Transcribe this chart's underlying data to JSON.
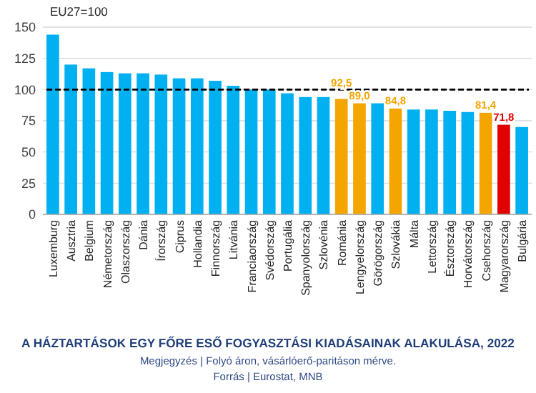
{
  "chart_data": {
    "type": "bar",
    "title": "A HÁZTARTÁSOK EGY FŐRE ESŐ FOGYASZTÁSI KIADÁSAINAK ALAKULÁSA, 2022",
    "ylabel": "EU27=100",
    "annotations": [
      "Megjegyzés | Folyó áron, vásárlóerő-paritáson mérve.",
      "Forrás | Eurostat, MNB"
    ],
    "categories": [
      "Luxemburg",
      "Ausztria",
      "Belgium",
      "Németország",
      "Olaszország",
      "Dánia",
      "Írország",
      "Ciprus",
      "Hollandia",
      "Finnország",
      "Litvánia",
      "Franciaország",
      "Svédország",
      "Portugália",
      "Spanyolország",
      "Szlovénia",
      "Románia",
      "Lengyelország",
      "Görögország",
      "Szlovákia",
      "Málta",
      "Lettország",
      "Észtország",
      "Horvátország",
      "Csehország",
      "Magyarország",
      "Bulgária"
    ],
    "values": [
      144,
      120,
      117,
      114,
      113,
      113,
      112,
      109,
      109,
      107,
      103,
      100,
      100,
      97,
      94,
      94,
      92.5,
      89.0,
      89,
      84.8,
      84,
      84,
      83,
      82,
      81.4,
      71.8,
      70
    ],
    "colors": [
      "#00b0f0",
      "#00b0f0",
      "#00b0f0",
      "#00b0f0",
      "#00b0f0",
      "#00b0f0",
      "#00b0f0",
      "#00b0f0",
      "#00b0f0",
      "#00b0f0",
      "#00b0f0",
      "#00b0f0",
      "#00b0f0",
      "#00b0f0",
      "#00b0f0",
      "#00b0f0",
      "#f5a500",
      "#f5a500",
      "#00b0f0",
      "#f5a500",
      "#00b0f0",
      "#00b0f0",
      "#00b0f0",
      "#00b0f0",
      "#f5a500",
      "#e00000",
      "#00b0f0"
    ],
    "value_labels": [
      null,
      null,
      null,
      null,
      null,
      null,
      null,
      null,
      null,
      null,
      null,
      null,
      null,
      null,
      null,
      null,
      "92,5",
      "89,0",
      null,
      "84,8",
      null,
      null,
      null,
      null,
      "81,4",
      "71,8",
      null
    ],
    "ylim": [
      0,
      150
    ],
    "yticks": [
      0,
      25,
      50,
      75,
      100,
      125,
      150
    ],
    "grid": "y",
    "ref_lines": [
      {
        "axis": "y",
        "value": 100,
        "color": "#000000",
        "line_style": "dashed"
      }
    ]
  }
}
